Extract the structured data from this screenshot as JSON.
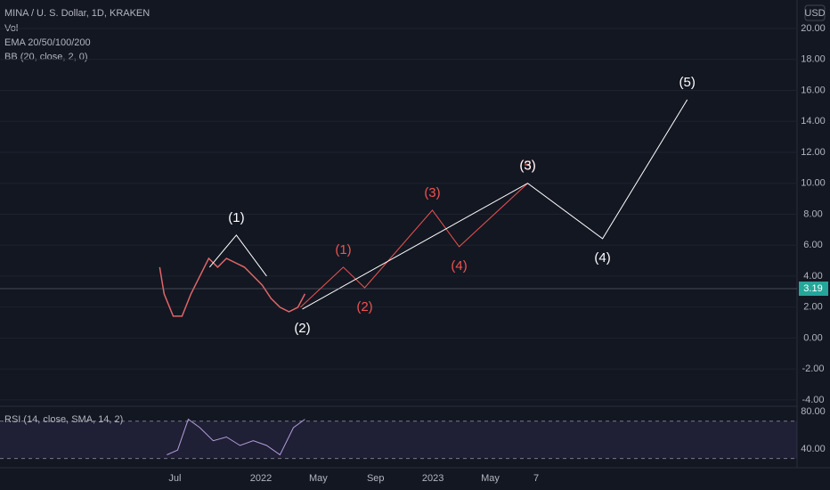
{
  "header": {
    "title": "MINA / U. S. Dollar, 1D, KRAKEN",
    "indicators": [
      "Vol",
      "EMA 20/50/100/200",
      "BB (20, close, 2, 0)"
    ],
    "currency": "USD"
  },
  "chart_data": [
    {
      "type": "line",
      "xlim": [
        -6.2,
        49.4
      ],
      "xticks": [
        {
          "value": 6,
          "label": "Jul"
        },
        {
          "value": 12,
          "label": "2022"
        },
        {
          "value": 16,
          "label": "May"
        },
        {
          "value": 20,
          "label": "Sep"
        },
        {
          "value": 24,
          "label": "2023"
        },
        {
          "value": 28,
          "label": "May"
        },
        {
          "value": 31.2,
          "label": "7"
        }
      ],
      "ylim": [
        -4.35,
        21.84
      ],
      "yticks": [
        {
          "value": 20,
          "label": "20.00"
        },
        {
          "value": 18,
          "label": "18.00"
        },
        {
          "value": 16,
          "label": "16.00"
        },
        {
          "value": 14,
          "label": "14.00"
        },
        {
          "value": 12,
          "label": "12.00"
        },
        {
          "value": 10,
          "label": "10.00"
        },
        {
          "value": 8,
          "label": "8.00"
        },
        {
          "value": 6,
          "label": "6.00"
        },
        {
          "value": 4,
          "label": "4.00"
        },
        {
          "value": 2,
          "label": "2.00"
        },
        {
          "value": 0,
          "label": "0.00"
        },
        {
          "value": -2,
          "label": "-2.00"
        },
        {
          "value": -4,
          "label": "-4.00"
        }
      ],
      "grid": true,
      "last_price": {
        "value": 3.19,
        "label": "3.19",
        "color": "#26a69a"
      },
      "series": [
        {
          "color": "#e06666",
          "width": 1.5,
          "x": [
            4.94,
            5.25,
            5.88,
            6.5,
            7.12,
            7.74,
            8.36,
            8.98,
            9.6,
            10.23,
            10.85,
            11.47,
            12.09,
            12.71,
            13.33,
            13.96,
            14.58,
            15.07
          ],
          "values": [
            4.58,
            2.85,
            1.41,
            1.41,
            2.85,
            4.0,
            5.15,
            4.58,
            5.15,
            4.86,
            4.58,
            4.0,
            3.42,
            2.56,
            1.99,
            1.7,
            1.99,
            2.85
          ]
        },
        {
          "color": "#ffffff",
          "width": 1,
          "x": [
            8.42,
            10.29,
            12.4
          ],
          "values": [
            4.58,
            6.65,
            4.0
          ],
          "point_labels": [
            null,
            "(1)",
            null
          ]
        },
        {
          "color": "#f05350",
          "width": 1,
          "x": [
            14.76,
            17.75,
            19.24,
            23.96,
            25.83,
            30.61
          ],
          "values": [
            1.99,
            4.58,
            3.25,
            8.26,
            5.9,
            10.0
          ],
          "point_labels": [
            null,
            "(1)",
            "(2)",
            "(3)",
            "(4)",
            "(5)"
          ]
        },
        {
          "color": "#ffffff",
          "width": 1,
          "x": [
            14.89,
            30.61,
            35.83,
            41.74
          ],
          "values": [
            1.87,
            10.0,
            6.42,
            15.4
          ],
          "point_labels": [
            "(2)",
            "(3)",
            "(4)",
            "(5)"
          ]
        }
      ]
    },
    {
      "type": "line",
      "title": "RSI (14, close, SMA, 14, 2)",
      "ylim": [
        23,
        84
      ],
      "yticks": [
        {
          "value": 80,
          "label": "80.00"
        },
        {
          "value": 40,
          "label": "40.00"
        }
      ],
      "band": [
        30,
        70
      ],
      "series": [
        {
          "color": "#b39ddb",
          "width": 1,
          "x": [
            5.44,
            6.19,
            6.93,
            7.74,
            8.67,
            9.6,
            10.54,
            11.47,
            12.4,
            13.33,
            14.27,
            15.07
          ],
          "values": [
            34,
            39,
            72,
            63,
            49,
            53,
            44,
            49,
            44,
            34,
            63,
            72
          ]
        }
      ]
    }
  ]
}
